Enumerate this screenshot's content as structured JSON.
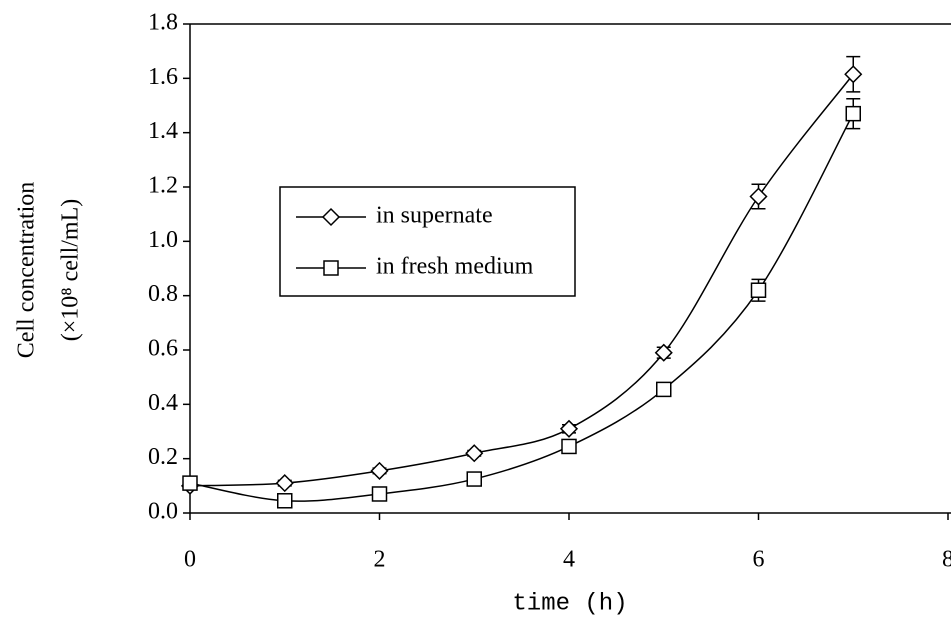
{
  "chart_data": {
    "type": "line",
    "x_label": "time (h)",
    "y_label_lines": [
      "Cell concentration",
      "(×10⁸ cell/mL)"
    ],
    "x": [
      0,
      1,
      2,
      3,
      4,
      5,
      6,
      7
    ],
    "series": [
      {
        "name": "in supernate",
        "color": "#000000",
        "marker": "diamond",
        "values": [
          0.1,
          0.11,
          0.155,
          0.22,
          0.31,
          0.59,
          1.165,
          1.615
        ],
        "errors": [
          0.01,
          0.01,
          0.01,
          0.01,
          0.015,
          0.02,
          0.045,
          0.065
        ]
      },
      {
        "name": "in fresh medium",
        "color": "#000000",
        "marker": "square",
        "values": [
          0.11,
          0.045,
          0.07,
          0.125,
          0.245,
          0.455,
          0.82,
          1.47
        ],
        "errors": [
          0.01,
          0.01,
          0.01,
          0.01,
          0.015,
          0.02,
          0.04,
          0.055
        ]
      }
    ],
    "xlim": [
      0,
      8
    ],
    "xticks": [
      0,
      2,
      4,
      6,
      8
    ],
    "ylim": [
      0,
      1.8
    ],
    "yticks": [
      {
        "value": 0,
        "label": "0.0"
      },
      {
        "value": 0.2,
        "label": "0.2"
      },
      {
        "value": 0.4,
        "label": "0.4"
      },
      {
        "value": 0.6,
        "label": "0.6"
      },
      {
        "value": 0.8,
        "label": "0.8"
      },
      {
        "value": 1.0,
        "label": "1.0"
      },
      {
        "value": 1.2,
        "label": "1.2"
      },
      {
        "value": 1.4,
        "label": "1.4"
      },
      {
        "value": 1.6,
        "label": "1.6"
      },
      {
        "value": 1.8,
        "label": "1.8"
      }
    ],
    "grid": false
  }
}
